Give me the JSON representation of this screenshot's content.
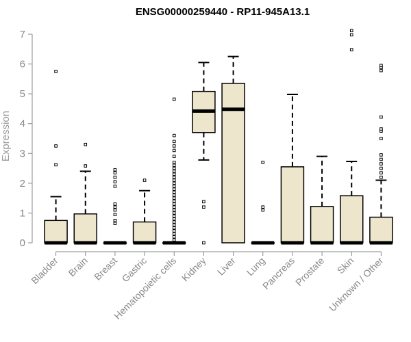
{
  "chart_data": {
    "type": "box",
    "title": "ENSG00000259440 - RP11-945A13.1",
    "xlabel": "",
    "ylabel": "Expression",
    "ylim": [
      0,
      7
    ],
    "yticks": [
      0,
      1,
      2,
      3,
      4,
      5,
      6,
      7
    ],
    "colors": {
      "box_fill": "#EEE6CC",
      "stroke": "#000000",
      "axis": "#888888",
      "title": "#000000"
    },
    "categories": [
      "Bladder",
      "Brain",
      "Breast",
      "Gastric",
      "Hematopoietic cells",
      "Kidney",
      "Liver",
      "Lung",
      "Pancreas",
      "Prostate",
      "Skin",
      "Unknown / Other"
    ],
    "boxes": [
      {
        "name": "Bladder",
        "q1": 0,
        "median": 0,
        "q3": 0.75,
        "whisker_low": 0,
        "whisker_high": 1.55,
        "outliers": [
          2.62,
          3.25,
          5.75
        ]
      },
      {
        "name": "Brain",
        "q1": 0,
        "median": 0,
        "q3": 0.97,
        "whisker_low": 0,
        "whisker_high": 2.4,
        "outliers": [
          2.58,
          3.3
        ]
      },
      {
        "name": "Breast",
        "q1": 0,
        "median": 0,
        "q3": 0,
        "whisker_low": 0,
        "whisker_high": 0,
        "outliers": [
          0.65,
          0.75,
          0.95,
          1.1,
          1.2,
          1.3,
          1.9,
          2.05,
          2.2,
          2.35,
          2.45
        ]
      },
      {
        "name": "Gastric",
        "q1": 0,
        "median": 0,
        "q3": 0.7,
        "whisker_low": 0,
        "whisker_high": 1.75,
        "outliers": [
          2.1
        ]
      },
      {
        "name": "Hematopoietic cells",
        "q1": 0,
        "median": 0,
        "q3": 0,
        "whisker_low": 0,
        "whisker_high": 0,
        "outliers": [
          0.1,
          0.2,
          0.3,
          0.4,
          0.5,
          0.6,
          0.7,
          0.8,
          0.9,
          1.0,
          1.1,
          1.2,
          1.3,
          1.4,
          1.5,
          1.6,
          1.7,
          1.8,
          1.9,
          2.0,
          2.1,
          2.2,
          2.3,
          2.4,
          2.5,
          2.6,
          2.7,
          2.9,
          3.1,
          3.25,
          3.4,
          3.6,
          4.82
        ]
      },
      {
        "name": "Kidney",
        "q1": 3.7,
        "median": 4.42,
        "q3": 5.08,
        "whisker_low": 2.78,
        "whisker_high": 6.05,
        "outliers": [
          0,
          1.2,
          1.38
        ]
      },
      {
        "name": "Liver",
        "q1": 0,
        "median": 4.48,
        "q3": 5.35,
        "whisker_low": 0,
        "whisker_high": 6.25,
        "outliers": []
      },
      {
        "name": "Lung",
        "q1": 0,
        "median": 0,
        "q3": 0,
        "whisker_low": 0,
        "whisker_high": 0,
        "outliers": [
          1.1,
          1.2,
          2.7
        ]
      },
      {
        "name": "Pancreas",
        "q1": 0,
        "median": 0,
        "q3": 2.55,
        "whisker_low": 0,
        "whisker_high": 4.98,
        "outliers": []
      },
      {
        "name": "Prostate",
        "q1": 0,
        "median": 0,
        "q3": 1.22,
        "whisker_low": 0,
        "whisker_high": 2.9,
        "outliers": []
      },
      {
        "name": "Skin",
        "q1": 0,
        "median": 0,
        "q3": 1.58,
        "whisker_low": 0,
        "whisker_high": 2.73,
        "outliers": [
          6.48,
          6.98,
          7.12
        ]
      },
      {
        "name": "Unknown / Other",
        "q1": 0,
        "median": 0,
        "q3": 0.86,
        "whisker_low": 0,
        "whisker_high": 2.1,
        "outliers": [
          2.2,
          2.35,
          2.5,
          2.65,
          2.8,
          2.95,
          3.5,
          3.75,
          3.82,
          4.22,
          5.78,
          5.88,
          5.95
        ]
      }
    ]
  }
}
